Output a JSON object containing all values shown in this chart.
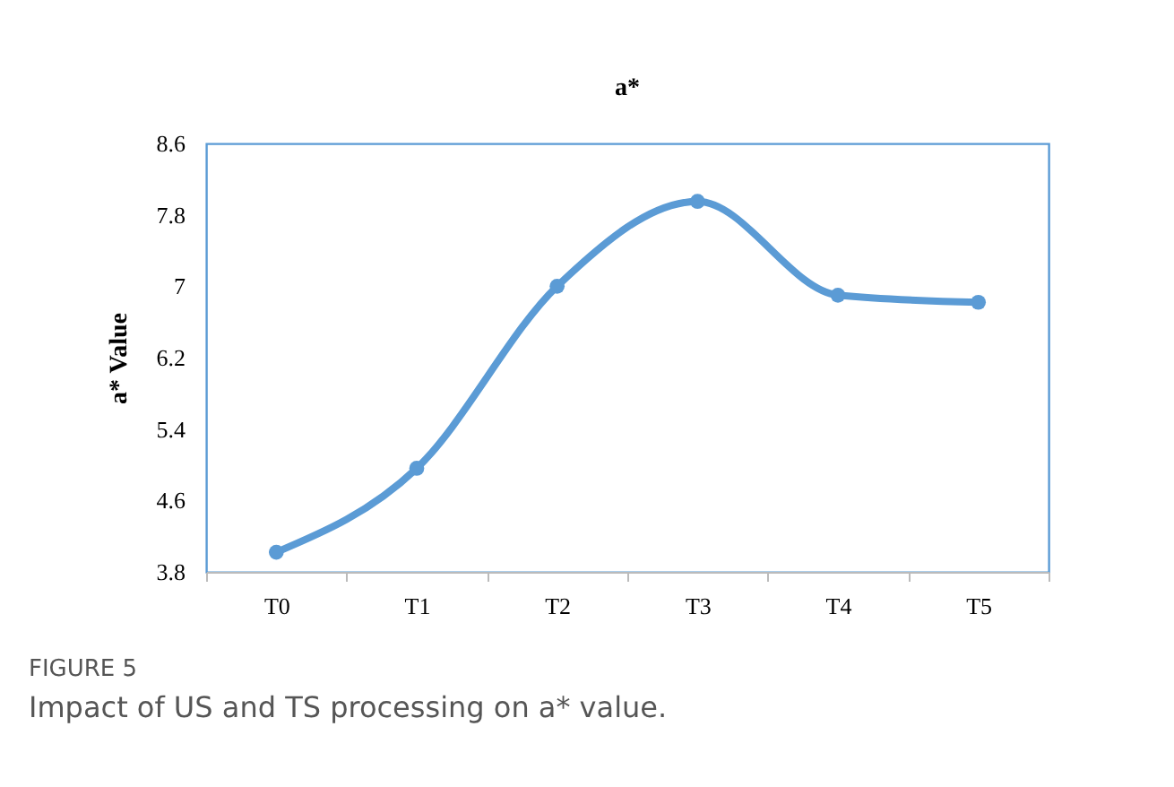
{
  "chart_data": {
    "type": "line",
    "title": "a*",
    "ylabel": "a* Value",
    "categories": [
      "T0",
      "T1",
      "T2",
      "T3",
      "T4",
      "T5"
    ],
    "series": [
      {
        "color": "#5b9bd5",
        "values": [
          4.02,
          4.96,
          7.0,
          7.95,
          6.9,
          6.82
        ]
      }
    ],
    "ylim": [
      3.8,
      8.6
    ],
    "yticks": [
      3.8,
      4.6,
      5.4,
      6.2,
      7,
      7.8,
      8.6
    ],
    "grid": false,
    "marker": "circle",
    "line_style": "solid",
    "annotations": [
      "FIGURE 5",
      "Impact of US and TS processing on a* value."
    ]
  }
}
